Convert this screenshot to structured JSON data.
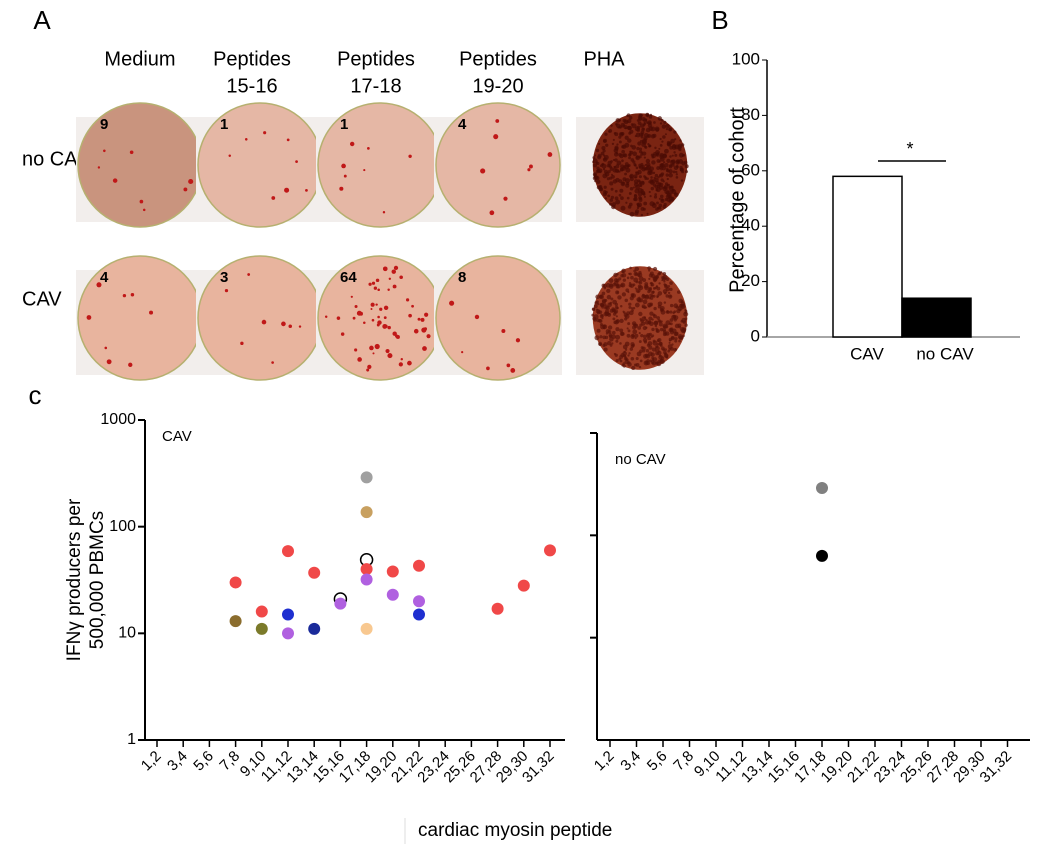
{
  "panel_labels": [
    "A",
    "B",
    "c"
  ],
  "panel_a": {
    "columns": [
      [
        "Medium"
      ],
      [
        "Peptides",
        "15-16"
      ],
      [
        "Peptides",
        "17-18"
      ],
      [
        "Peptides",
        "19-20"
      ],
      [
        "PHA"
      ]
    ],
    "rows": [
      {
        "label": "no CAV",
        "counts": [
          9,
          1,
          1,
          4,
          null
        ]
      },
      {
        "label": "CAV",
        "counts": [
          4,
          3,
          64,
          8,
          null
        ]
      }
    ]
  },
  "chart_data": [
    {
      "type": "bar",
      "categories": [
        "CAV",
        "no CAV"
      ],
      "values": [
        58,
        14
      ],
      "colors": [
        "#ffffff",
        "#000000"
      ],
      "edgecolor": "#000000",
      "ylabel": "Percentage of cohort",
      "ylim": [
        0,
        100
      ],
      "yticks": [
        0,
        20,
        40,
        60,
        80,
        100
      ],
      "significance": "*"
    },
    {
      "type": "scatter",
      "title": "CAV",
      "ylabel": [
        "IFNγ producers per",
        "500,000 PBMCs"
      ],
      "xlabel": "cardiac myosin peptide",
      "log_y": true,
      "tick_labels": true,
      "categories": [
        "1,2",
        "3,4",
        "5,6",
        "7,8",
        "9,10",
        "11,12",
        "13,14",
        "15,16",
        "17,18",
        "19,20",
        "21,22",
        "23,24",
        "25,26",
        "27,28",
        "29,30",
        "31,32"
      ],
      "ylim": [
        1,
        1000
      ],
      "yticks": [
        1,
        10,
        100,
        1000
      ],
      "points": [
        {
          "category": "7,8",
          "value": 30,
          "color": "#f04848"
        },
        {
          "category": "7,8",
          "value": 13,
          "color": "#8b6d2e"
        },
        {
          "category": "9,10",
          "value": 16,
          "color": "#f04848"
        },
        {
          "category": "9,10",
          "value": 11,
          "color": "#7b7a2a"
        },
        {
          "category": "11,12",
          "value": 59,
          "color": "#f04848"
        },
        {
          "category": "11,12",
          "value": 15,
          "color": "#1f2fd0"
        },
        {
          "category": "11,12",
          "value": 10,
          "color": "#b060e0"
        },
        {
          "category": "13,14",
          "value": 37,
          "color": "#f04848"
        },
        {
          "category": "13,14",
          "value": 11,
          "color": "#1a2a9a"
        },
        {
          "category": "15,16",
          "value": 21,
          "color": "#000000",
          "hollow": true
        },
        {
          "category": "15,16",
          "value": 19,
          "color": "#b060e0"
        },
        {
          "category": "17,18",
          "value": 290,
          "color": "#a0a0a0"
        },
        {
          "category": "17,18",
          "value": 137,
          "color": "#c8a060"
        },
        {
          "category": "17,18",
          "value": 49,
          "color": "#000000",
          "hollow": true
        },
        {
          "category": "17,18",
          "value": 40,
          "color": "#f04848"
        },
        {
          "category": "17,18",
          "value": 32,
          "color": "#b060e0"
        },
        {
          "category": "17,18",
          "value": 11,
          "color": "#f8c890"
        },
        {
          "category": "19,20",
          "value": 38,
          "color": "#f04848"
        },
        {
          "category": "19,20",
          "value": 23,
          "color": "#b060e0"
        },
        {
          "category": "21,22",
          "value": 43,
          "color": "#f04848"
        },
        {
          "category": "21,22",
          "value": 20,
          "color": "#b060e0"
        },
        {
          "category": "21,22",
          "value": 15,
          "color": "#1f2fd0"
        },
        {
          "category": "27,28",
          "value": 17,
          "color": "#f04848"
        },
        {
          "category": "29,30",
          "value": 28,
          "color": "#f04848"
        },
        {
          "category": "31,32",
          "value": 60,
          "color": "#f04848"
        }
      ]
    },
    {
      "type": "scatter",
      "title": "no CAV",
      "log_y": true,
      "tick_labels": false,
      "categories": [
        "1,2",
        "3,4",
        "5,6",
        "7,8",
        "9,10",
        "11,12",
        "13,14",
        "15,16",
        "17,18",
        "19,20",
        "21,22",
        "23,24",
        "25,26",
        "27,28",
        "29,30",
        "31,32"
      ],
      "ylim": [
        1,
        1000
      ],
      "yticks": [
        10,
        100,
        1000
      ],
      "points": [
        {
          "category": "17,18",
          "value": 290,
          "color": "#808080"
        },
        {
          "category": "17,18",
          "value": 63,
          "color": "#000000"
        }
      ]
    }
  ]
}
